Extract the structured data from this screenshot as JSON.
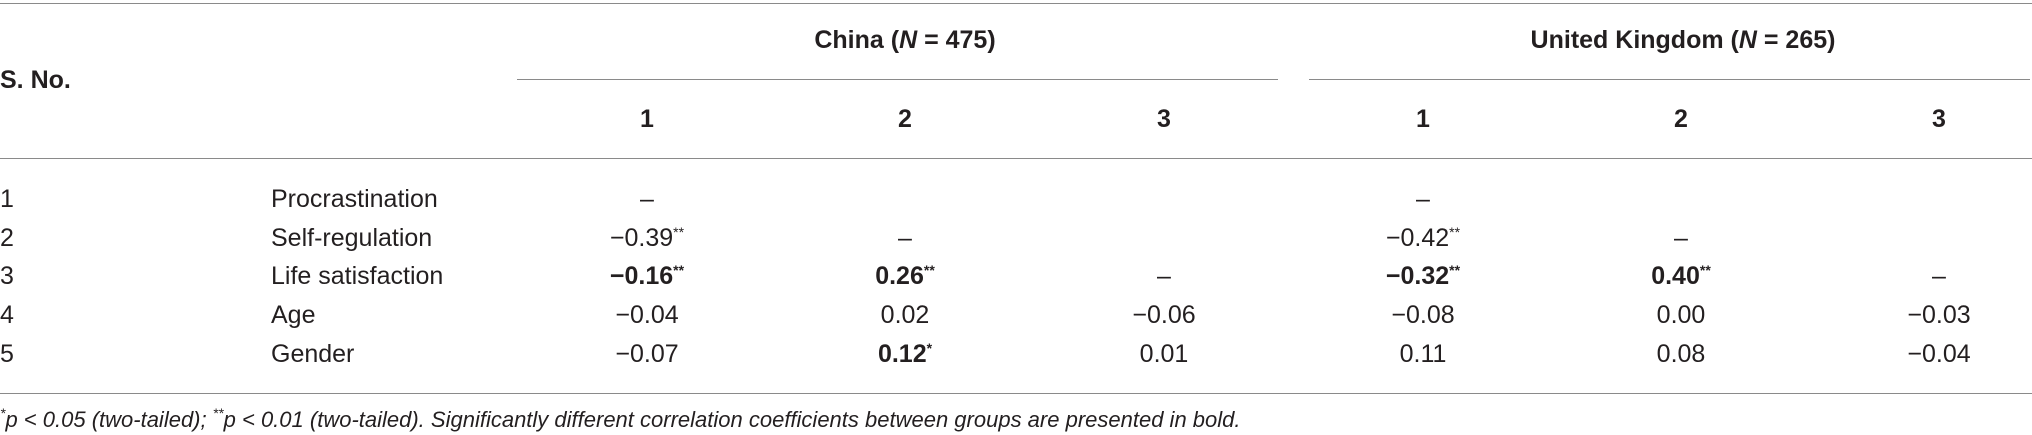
{
  "table": {
    "stub_header": "S. No.",
    "groups": [
      {
        "prefix": "China (",
        "italic": "N",
        "suffix": " = 475)",
        "columns": [
          "1",
          "2",
          "3"
        ]
      },
      {
        "prefix": "United Kingdom (",
        "italic": "N",
        "suffix": " = 265)",
        "columns": [
          "1",
          "2",
          "3"
        ]
      }
    ],
    "rows": [
      {
        "number": "1",
        "label": "Procrastination",
        "cells": [
          {
            "text": "–",
            "sup": null,
            "bold": false
          },
          null,
          null,
          {
            "text": "–",
            "sup": null,
            "bold": false
          },
          null,
          null
        ]
      },
      {
        "number": "2",
        "label": "Self-regulation",
        "cells": [
          {
            "text": "−0.39",
            "sup": "**",
            "bold": false
          },
          {
            "text": "–",
            "sup": null,
            "bold": false
          },
          null,
          {
            "text": "−0.42",
            "sup": "**",
            "bold": false
          },
          {
            "text": "–",
            "sup": null,
            "bold": false
          },
          null
        ]
      },
      {
        "number": "3",
        "label": "Life satisfaction",
        "cells": [
          {
            "text": "−0.16",
            "sup": "**",
            "bold": true
          },
          {
            "text": "0.26",
            "sup": "**",
            "bold": true
          },
          {
            "text": "–",
            "sup": null,
            "bold": false
          },
          {
            "text": "−0.32",
            "sup": "**",
            "bold": true
          },
          {
            "text": "0.40",
            "sup": "**",
            "bold": true
          },
          {
            "text": "–",
            "sup": null,
            "bold": false
          }
        ]
      },
      {
        "number": "4",
        "label": "Age",
        "cells": [
          {
            "text": "−0.04",
            "sup": null,
            "bold": false
          },
          {
            "text": "0.02",
            "sup": null,
            "bold": false
          },
          {
            "text": "−0.06",
            "sup": null,
            "bold": false
          },
          {
            "text": "−0.08",
            "sup": null,
            "bold": false
          },
          {
            "text": "0.00",
            "sup": null,
            "bold": false
          },
          {
            "text": "−0.03",
            "sup": null,
            "bold": false
          }
        ]
      },
      {
        "number": "5",
        "label": "Gender",
        "cells": [
          {
            "text": "−0.07",
            "sup": null,
            "bold": false
          },
          {
            "text": "0.12",
            "sup": "*",
            "bold": true
          },
          {
            "text": "0.01",
            "sup": null,
            "bold": false
          },
          {
            "text": "0.11",
            "sup": null,
            "bold": false
          },
          {
            "text": "0.08",
            "sup": null,
            "bold": false
          },
          {
            "text": "−0.04",
            "sup": null,
            "bold": false
          }
        ]
      }
    ]
  },
  "footnote": [
    {
      "text": "*",
      "sup": true
    },
    {
      "text": "p < 0.05 (two-tailed); ",
      "sup": false
    },
    {
      "text": "**",
      "sup": true
    },
    {
      "text": "p < 0.01 (two-tailed). Significantly different correlation coefficients between groups are presented in bold.",
      "sup": false
    }
  ]
}
